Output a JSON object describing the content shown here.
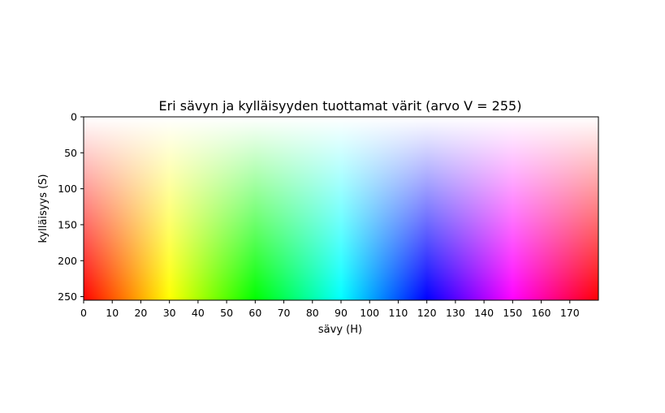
{
  "chart_data": {
    "type": "heatmap",
    "title": "Eri sävyn ja kylläisyyden tuottamat värit (arvo V = 255)",
    "xlabel": "sävy (H)",
    "ylabel": "kylläisyys (S)",
    "x_range": [
      0,
      180
    ],
    "y_range": [
      0,
      255
    ],
    "y_inverted": true,
    "x_ticks": [
      0,
      10,
      20,
      30,
      40,
      50,
      60,
      70,
      80,
      90,
      100,
      110,
      120,
      130,
      140,
      150,
      160,
      170
    ],
    "y_ticks": [
      0,
      50,
      100,
      150,
      200,
      250
    ],
    "color_value_V": 255,
    "hue_stops": [
      {
        "h": 0,
        "color": "#ff0000"
      },
      {
        "h": 30,
        "color": "#ffff00"
      },
      {
        "h": 60,
        "color": "#00ff00"
      },
      {
        "h": 90,
        "color": "#00ffff"
      },
      {
        "h": 120,
        "color": "#0000ff"
      },
      {
        "h": 150,
        "color": "#ff00ff"
      },
      {
        "h": 180,
        "color": "#ff0000"
      }
    ],
    "saturation_fade_color": "#ffffff",
    "grid": false
  }
}
